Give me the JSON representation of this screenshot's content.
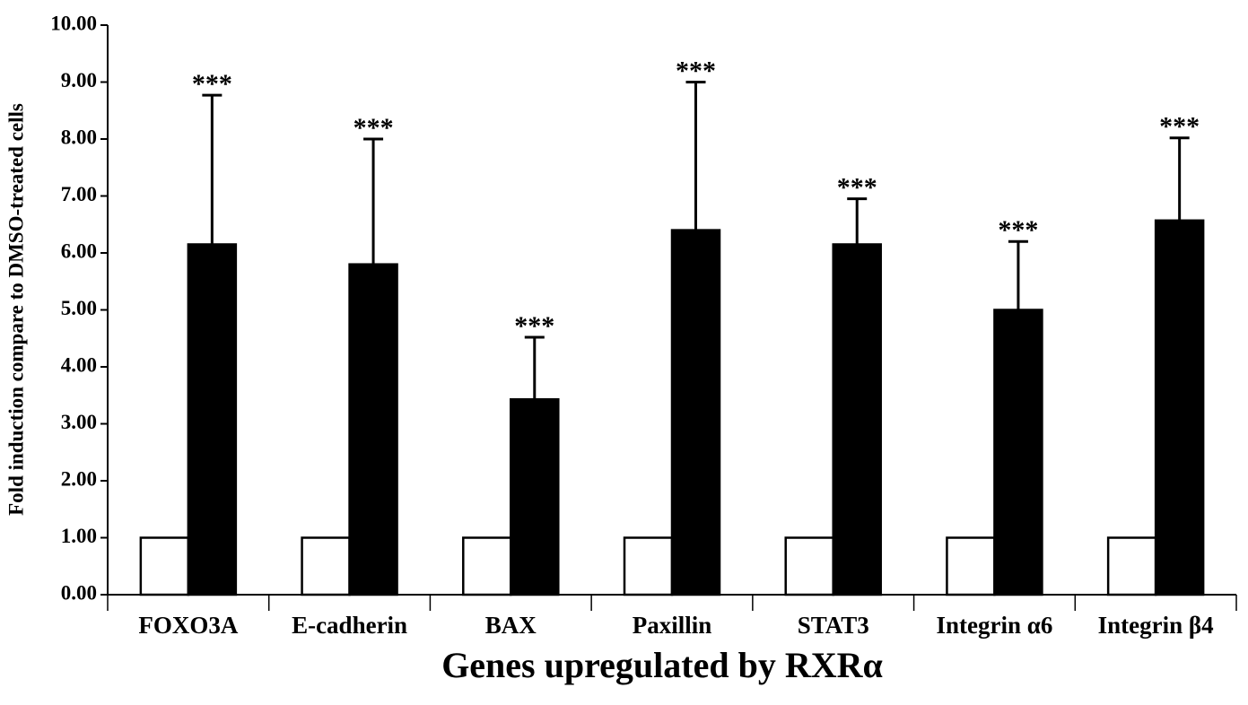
{
  "chart_data": {
    "type": "bar",
    "x_label": "Genes upregulated by RXRα",
    "y_label": "Fold induction compare to DMSO-treated cells",
    "categories": [
      "FOXO3A",
      "E-cadherin",
      "BAX",
      "Paxillin",
      "STAT3",
      "Integrin α6",
      "Integrin β4"
    ],
    "series": [
      {
        "color": "#ffffff",
        "values": [
          1,
          1,
          1,
          1,
          1,
          1,
          1
        ]
      },
      {
        "color": "#000000",
        "values": [
          6.15,
          5.8,
          3.43,
          6.4,
          6.15,
          5.0,
          6.57
        ],
        "errors": [
          2.62,
          2.2,
          1.09,
          2.6,
          0.8,
          1.2,
          1.45
        ],
        "annotations": [
          "***",
          "***",
          "***",
          "***",
          "***",
          "***",
          "***"
        ]
      }
    ],
    "ylim": [
      0,
      10
    ],
    "yticks": [
      {
        "value": 0,
        "label": "0.00"
      },
      {
        "value": 1,
        "label": "1.00"
      },
      {
        "value": 2,
        "label": "2.00"
      },
      {
        "value": 3,
        "label": "3.00"
      },
      {
        "value": 4,
        "label": "4.00"
      },
      {
        "value": 5,
        "label": "5.00"
      },
      {
        "value": 6,
        "label": "6.00"
      },
      {
        "value": 7,
        "label": "7.00"
      },
      {
        "value": 8,
        "label": "8.00"
      },
      {
        "value": 9,
        "label": "9.00"
      },
      {
        "value": 10,
        "label": "10.00"
      }
    ],
    "grid": false
  }
}
